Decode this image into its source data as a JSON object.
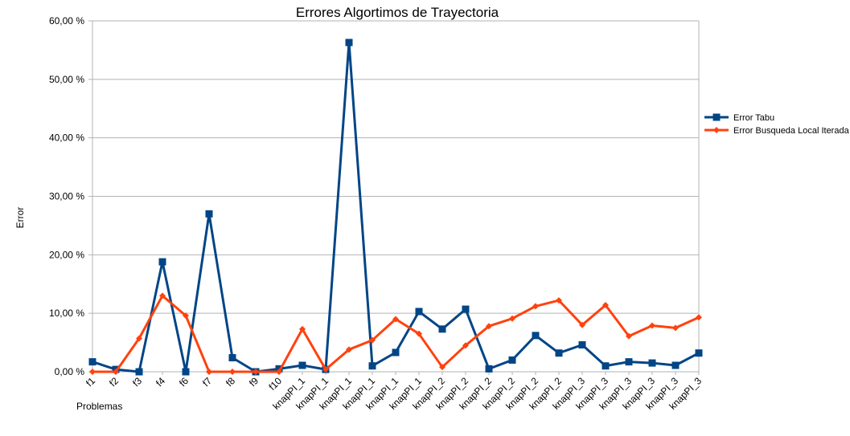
{
  "chart_data": {
    "type": "line",
    "title": "Errores Algortimos de Trayectoria",
    "xlabel": "Problemas",
    "ylabel": "Error",
    "ylim": [
      0,
      60
    ],
    "y_ticks": [
      "0,00 %",
      "10,00 %",
      "20,00 %",
      "30,00 %",
      "40,00 %",
      "50,00 %",
      "60,00 %"
    ],
    "grid": true,
    "legend_position": "right",
    "categories": [
      "f1",
      "f2",
      "f3",
      "f4",
      "f6",
      "f7",
      "f8",
      "f9",
      "f10",
      "knapPI_1",
      "knapPI_1",
      "knapPI_1",
      "knapPI_1",
      "knapPI_1",
      "knapPI_1",
      "knapPI_2",
      "knapPI_2",
      "knapPI_2",
      "knapPI_2",
      "knapPI_2",
      "knapPI_2",
      "knapPI_3",
      "knapPI_3",
      "knapPI_3",
      "knapPI_3",
      "knapPI_3",
      "knapPI_3"
    ],
    "series": [
      {
        "name": "Error Tabu",
        "color": "#004586",
        "marker": "square",
        "values": [
          1.7,
          0.4,
          0.0,
          18.8,
          0.0,
          27.0,
          2.4,
          0.0,
          0.5,
          1.1,
          0.4,
          56.3,
          1.0,
          3.3,
          10.3,
          7.3,
          10.7,
          0.5,
          2.0,
          6.2,
          3.2,
          4.6,
          1.0,
          1.7,
          1.5,
          1.1,
          3.2
        ]
      },
      {
        "name": "Error Busqueda Local Iterada",
        "color": "#ff420e",
        "marker": "diamond",
        "values": [
          0.0,
          0.0,
          5.7,
          13.0,
          9.6,
          0.0,
          0.0,
          0.0,
          0.0,
          7.3,
          0.4,
          3.8,
          5.4,
          9.0,
          6.5,
          0.8,
          4.5,
          7.8,
          9.1,
          11.2,
          12.2,
          8.0,
          11.4,
          6.1,
          7.9,
          7.5,
          9.3
        ]
      }
    ]
  }
}
